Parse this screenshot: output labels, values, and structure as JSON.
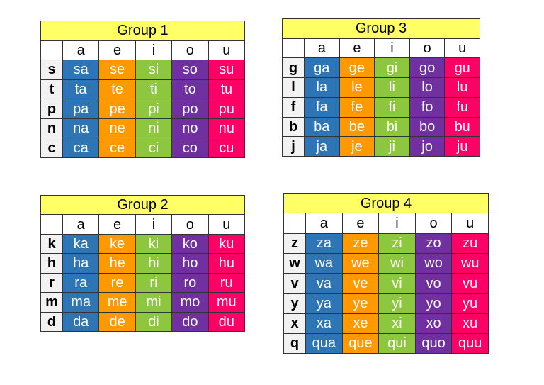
{
  "groups": [
    {
      "title": "Group 1",
      "vowels": [
        "a",
        "e",
        "i",
        "o",
        "u"
      ],
      "rows": [
        {
          "consonant": "s",
          "cells": [
            "sa",
            "se",
            "si",
            "so",
            "su"
          ]
        },
        {
          "consonant": "t",
          "cells": [
            "ta",
            "te",
            "ti",
            "to",
            "tu"
          ]
        },
        {
          "consonant": "p",
          "cells": [
            "pa",
            "pe",
            "pi",
            "po",
            "pu"
          ]
        },
        {
          "consonant": "n",
          "cells": [
            "na",
            "ne",
            "ni",
            "no",
            "nu"
          ]
        },
        {
          "consonant": "c",
          "cells": [
            "ca",
            "ce",
            "ci",
            "co",
            "cu"
          ]
        }
      ]
    },
    {
      "title": "Group 3",
      "vowels": [
        "a",
        "e",
        "i",
        "o",
        "u"
      ],
      "rows": [
        {
          "consonant": "g",
          "cells": [
            "ga",
            "ge",
            "gi",
            "go",
            "gu"
          ]
        },
        {
          "consonant": "l",
          "cells": [
            "la",
            "le",
            "li",
            "lo",
            "lu"
          ]
        },
        {
          "consonant": "f",
          "cells": [
            "fa",
            "fe",
            "fi",
            "fo",
            "fu"
          ]
        },
        {
          "consonant": "b",
          "cells": [
            "ba",
            "be",
            "bi",
            "bo",
            "bu"
          ]
        },
        {
          "consonant": "j",
          "cells": [
            "ja",
            "je",
            "ji",
            "jo",
            "ju"
          ]
        }
      ]
    },
    {
      "title": "Group 2",
      "vowels": [
        "a",
        "e",
        "i",
        "o",
        "u"
      ],
      "rows": [
        {
          "consonant": "k",
          "cells": [
            "ka",
            "ke",
            "ki",
            "ko",
            "ku"
          ]
        },
        {
          "consonant": "h",
          "cells": [
            "ha",
            "he",
            "hi",
            "ho",
            "hu"
          ]
        },
        {
          "consonant": "r",
          "cells": [
            "ra",
            "re",
            "ri",
            "ro",
            "ru"
          ]
        },
        {
          "consonant": "m",
          "cells": [
            "ma",
            "me",
            "mi",
            "mo",
            "mu"
          ]
        },
        {
          "consonant": "d",
          "cells": [
            "da",
            "de",
            "di",
            "do",
            "du"
          ]
        }
      ]
    },
    {
      "title": "Group 4",
      "vowels": [
        "a",
        "e",
        "i",
        "o",
        "u"
      ],
      "rows": [
        {
          "consonant": "z",
          "cells": [
            "za",
            "ze",
            "zi",
            "zo",
            "zu"
          ]
        },
        {
          "consonant": "w",
          "cells": [
            "wa",
            "we",
            "wi",
            "wo",
            "wu"
          ]
        },
        {
          "consonant": "v",
          "cells": [
            "va",
            "ve",
            "vi",
            "vo",
            "vu"
          ]
        },
        {
          "consonant": "y",
          "cells": [
            "ya",
            "ye",
            "yi",
            "yo",
            "yu"
          ]
        },
        {
          "consonant": "x",
          "cells": [
            "xa",
            "xe",
            "xi",
            "xo",
            "xu"
          ]
        },
        {
          "consonant": "q",
          "cells": [
            "qua",
            "que",
            "qui",
            "quo",
            "quu"
          ]
        }
      ]
    }
  ]
}
